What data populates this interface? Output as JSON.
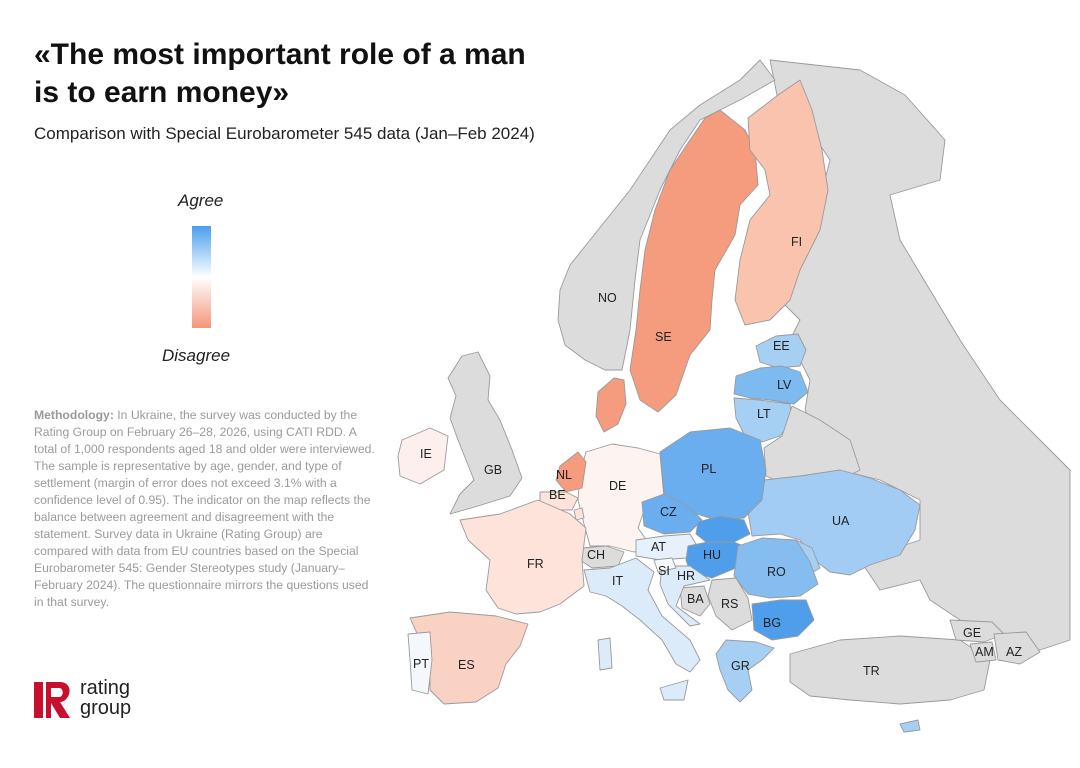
{
  "title": {
    "line1": "«The most important role of a man",
    "line2": "is to earn money»"
  },
  "subtitle": "Comparison with Special Eurobarometer 545 data (Jan–Feb 2024)",
  "legend": {
    "agree": "Agree",
    "disagree": "Disagree",
    "colors": {
      "agree": "#4a9eef",
      "neutral": "#ffffff",
      "disagree": "#f4967a"
    }
  },
  "methodology": {
    "label": "Methodology:",
    "text": "In Ukraine, the survey was conducted by the Rating Group on February 26–28, 2026, using CATI RDD. A total of 1,000 respondents aged 18 and older were interviewed. The sample is representative by age, gender, and type of settlement (margin of error does not exceed 3.1% with a confidence level of 0.95). The indicator on the map reflects the balance between agreement and disagreement with the statement. Survey data in Ukraine (Rating Group) are compared with data from EU countries based on the Special Eurobarometer 545: Gender Stereotypes study (January–February 2024). The questionnaire mirrors the questions used in that survey."
  },
  "logo": {
    "line1": "rating",
    "line2": "group",
    "brand_color": "#c8102e"
  },
  "countries": {
    "NO": {
      "label": "NO",
      "fill": "#dcdcdc"
    },
    "SE": {
      "label": "SE",
      "fill": "#f59c7e"
    },
    "FI": {
      "label": "FI",
      "fill": "#f9c3ae"
    },
    "EE": {
      "label": "EE",
      "fill": "#a6cff4"
    },
    "LV": {
      "label": "LV",
      "fill": "#7dbaf0"
    },
    "LT": {
      "label": "LT",
      "fill": "#a6cff4"
    },
    "PL": {
      "label": "PL",
      "fill": "#6aaef0"
    },
    "UA": {
      "label": "UA",
      "fill": "#a2ccf3"
    },
    "DE": {
      "label": "DE",
      "fill": "#fdf4f1"
    },
    "CZ": {
      "label": "CZ",
      "fill": "#6aaef0"
    },
    "AT": {
      "label": "AT",
      "fill": "#e6f1fc"
    },
    "HU": {
      "label": "HU",
      "fill": "#4f9eec"
    },
    "RO": {
      "label": "RO",
      "fill": "#85bdf1"
    },
    "BG": {
      "label": "BG",
      "fill": "#4f9eec"
    },
    "GR": {
      "label": "GR",
      "fill": "#a6cff4"
    },
    "IE": {
      "label": "IE",
      "fill": "#fdf0ec"
    },
    "GB": {
      "label": "GB",
      "fill": "#dcdcdc"
    },
    "NL": {
      "label": "NL",
      "fill": "#f59c7e"
    },
    "BE": {
      "label": "BE",
      "fill": "#fde3da"
    },
    "FR": {
      "label": "FR",
      "fill": "#fde3da"
    },
    "CH": {
      "label": "CH",
      "fill": "#dcdcdc"
    },
    "IT": {
      "label": "IT",
      "fill": "#dcebfa"
    },
    "SI": {
      "label": "SI",
      "fill": "#f6fafe"
    },
    "HR": {
      "label": "HR",
      "fill": "#dcebfa"
    },
    "BA": {
      "label": "BA",
      "fill": "#dcdcdc"
    },
    "RS": {
      "label": "RS",
      "fill": "#dcdcdc"
    },
    "ES": {
      "label": "ES",
      "fill": "#fad2c4"
    },
    "PT": {
      "label": "PT",
      "fill": "#f4f8fd"
    },
    "TR": {
      "label": "TR",
      "fill": "#dcdcdc"
    },
    "GE": {
      "label": "GE",
      "fill": "#dcdcdc"
    },
    "AM": {
      "label": "AM",
      "fill": "#dcdcdc"
    },
    "AZ": {
      "label": "AZ",
      "fill": "#dcdcdc"
    },
    "DK": {
      "fill": "#f59c7e"
    },
    "SK": {
      "fill": "#4f9eec"
    },
    "MD": {
      "fill": "#a6cff4"
    },
    "RU": {
      "fill": "#dcdcdc"
    },
    "BY": {
      "fill": "#dcdcdc"
    },
    "LU": {
      "fill": "#fde3da"
    },
    "CY": {
      "fill": "#a6cff4"
    }
  }
}
